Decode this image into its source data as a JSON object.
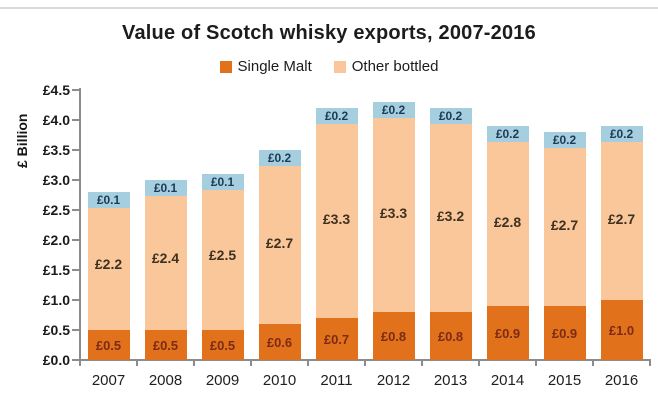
{
  "chart_data": {
    "type": "bar",
    "stacked": true,
    "title": "Value of Scotch whisky exports, 2007-2016",
    "categories": [
      "2007",
      "2008",
      "2009",
      "2010",
      "2011",
      "2012",
      "2013",
      "2014",
      "2015",
      "2016"
    ],
    "series": [
      {
        "name": "Single Malt",
        "in_legend": true,
        "color": "#E2711B",
        "label_color": "#7B2B17",
        "values": [
          0.5,
          0.5,
          0.5,
          0.6,
          0.7,
          0.8,
          0.8,
          0.9,
          0.9,
          1.0
        ],
        "labels": [
          "£0.5",
          "£0.5",
          "£0.5",
          "£0.6",
          "£0.7",
          "£0.8",
          "£0.8",
          "£0.9",
          "£0.9",
          "£1.0"
        ]
      },
      {
        "name": "Other bottled",
        "in_legend": true,
        "color": "#FAC79A",
        "label_color": "#3E3120",
        "values": [
          2.2,
          2.4,
          2.5,
          2.7,
          3.3,
          3.3,
          3.2,
          2.8,
          2.7,
          2.7
        ],
        "labels": [
          "£2.2",
          "£2.4",
          "£2.5",
          "£2.7",
          "£3.3",
          "£3.3",
          "£3.2",
          "£2.8",
          "£2.7",
          "£2.7"
        ]
      },
      {
        "name": "",
        "in_legend": false,
        "color": "#A5CEDF",
        "label_color": "#1E3A56",
        "values": [
          0.1,
          0.1,
          0.1,
          0.2,
          0.2,
          0.2,
          0.2,
          0.2,
          0.2,
          0.2
        ],
        "labels": [
          "£0.1",
          "£0.1",
          "£0.1",
          "£0.2",
          "£0.2",
          "£0.2",
          "£0.2",
          "£0.2",
          "£0.2",
          "£0.2"
        ]
      }
    ],
    "totals": [
      2.8,
      3.0,
      3.1,
      3.5,
      4.2,
      4.3,
      4.2,
      3.9,
      3.8,
      3.9
    ],
    "xlabel": "",
    "ylabel": "£ Billion",
    "yticks": [
      "£0.0",
      "£0.5",
      "£1.0",
      "£1.5",
      "£2.0",
      "£2.5",
      "£3.0",
      "£3.5",
      "£4.0",
      "£4.5"
    ],
    "ytick_values": [
      0,
      0.5,
      1.0,
      1.5,
      2.0,
      2.5,
      3.0,
      3.5,
      4.0,
      4.5
    ],
    "ylim": [
      0,
      4.5
    ],
    "grid": false,
    "legend_position": "top"
  }
}
